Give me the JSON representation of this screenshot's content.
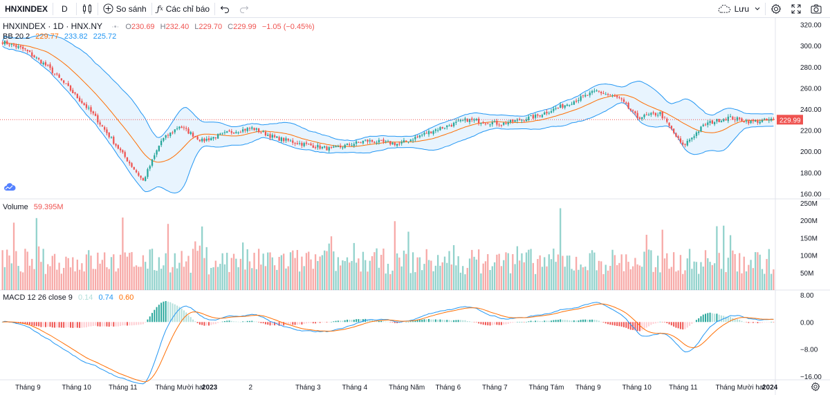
{
  "toolbar": {
    "symbol": "HNXINDEX",
    "interval": "D",
    "compare_label": "So sánh",
    "indicators_label": "Các chỉ báo",
    "save_label": "Lưu"
  },
  "legend": {
    "title": "HNXINDEX · 1D · HNX.NY",
    "o_label": "O",
    "o_value": "230.69",
    "h_label": "H",
    "h_value": "232.40",
    "l_label": "L",
    "l_value": "229.70",
    "c_label": "C",
    "c_value": "229.99",
    "change": "−1.05 (−0.45%)",
    "bb_label": "BB 20 2",
    "bb_mid": "229.77",
    "bb_upper": "233.82",
    "bb_lower": "225.72",
    "volume_label": "Volume",
    "volume_value": "59.395M",
    "macd_label": "MACD 12 26 close 9",
    "macd_hist": "0.14",
    "macd_line": "0.74",
    "macd_signal": "0.60"
  },
  "colors": {
    "up": "#26a69a",
    "down": "#ef5350",
    "bb_band": "#2196f3",
    "bb_mid": "#ff6d00",
    "macd_line": "#2196f3",
    "signal_line": "#ff6d00"
  },
  "price_axis": {
    "labels": [
      "320.00",
      "300.00",
      "280.00",
      "260.00",
      "240.00",
      "220.00",
      "200.00",
      "180.00",
      "160.00"
    ],
    "last_price": "229.99"
  },
  "volume_axis": {
    "labels": [
      "250M",
      "200M",
      "150M",
      "100M",
      "50M"
    ]
  },
  "macd_axis": {
    "labels": [
      "8.00",
      "0.00",
      "−8.00",
      "−16.00"
    ]
  },
  "time_axis": {
    "labels": [
      "Tháng 9",
      "Tháng 10",
      "Tháng 11",
      "Tháng Mười hai",
      "2023",
      "2",
      "Tháng 3",
      "Tháng 4",
      "Tháng Năm",
      "Tháng 6",
      "Tháng 7",
      "Tháng Tám",
      "Tháng 9",
      "Tháng 10",
      "Tháng 11",
      "Tháng Mười hai",
      "2024"
    ]
  },
  "chart_data": {
    "type": "candlestick",
    "symbol": "HNXINDEX",
    "interval": "1D",
    "price_range": [
      155,
      325
    ],
    "close_path_anchors": [
      {
        "bar": 0,
        "close": 304
      },
      {
        "bar": 10,
        "close": 296
      },
      {
        "bar": 20,
        "close": 280
      },
      {
        "bar": 30,
        "close": 258
      },
      {
        "bar": 40,
        "close": 235
      },
      {
        "bar": 50,
        "close": 206
      },
      {
        "bar": 62,
        "close": 172
      },
      {
        "bar": 70,
        "close": 210
      },
      {
        "bar": 78,
        "close": 224
      },
      {
        "bar": 88,
        "close": 210
      },
      {
        "bar": 100,
        "close": 218
      },
      {
        "bar": 110,
        "close": 222
      },
      {
        "bar": 120,
        "close": 213
      },
      {
        "bar": 130,
        "close": 208
      },
      {
        "bar": 145,
        "close": 202
      },
      {
        "bar": 160,
        "close": 210
      },
      {
        "bar": 175,
        "close": 207
      },
      {
        "bar": 190,
        "close": 220
      },
      {
        "bar": 205,
        "close": 230
      },
      {
        "bar": 220,
        "close": 226
      },
      {
        "bar": 235,
        "close": 233
      },
      {
        "bar": 248,
        "close": 244
      },
      {
        "bar": 262,
        "close": 257
      },
      {
        "bar": 272,
        "close": 250
      },
      {
        "bar": 280,
        "close": 232
      },
      {
        "bar": 290,
        "close": 236
      },
      {
        "bar": 300,
        "close": 205
      },
      {
        "bar": 310,
        "close": 226
      },
      {
        "bar": 320,
        "close": 232
      },
      {
        "bar": 330,
        "close": 228
      },
      {
        "bar": 340,
        "close": 230
      }
    ],
    "last": {
      "open": 230.69,
      "high": 232.4,
      "low": 229.7,
      "close": 229.99
    },
    "bollinger": {
      "period": 20,
      "mult": 2,
      "mid": 229.77,
      "upper": 233.82,
      "lower": 225.72
    },
    "volume_range": [
      0,
      250
    ],
    "volume_unit": "M",
    "macd": {
      "fast": 12,
      "slow": 26,
      "signal": 9,
      "histogram": 0.14,
      "macd": 0.74,
      "signal_value": 0.6
    },
    "macd_range": [
      -17,
      9
    ]
  }
}
